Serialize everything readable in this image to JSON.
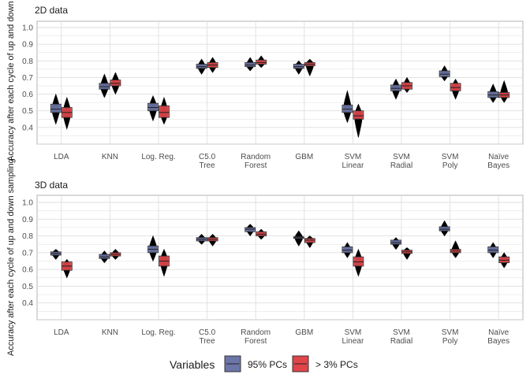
{
  "chart_data": [
    {
      "type": "violin-box",
      "title": "2D data",
      "ylabel": "Accuracy after each cycle of up and down sampling",
      "ylim": [
        0.3,
        1.0
      ],
      "yticks": [
        "0.4",
        "0.5",
        "0.6",
        "0.7",
        "0.8",
        "0.9",
        "1.0"
      ],
      "categories": [
        [
          "LDA"
        ],
        [
          "KNN"
        ],
        [
          "Log. Reg."
        ],
        [
          "C5.0",
          "Tree"
        ],
        [
          "Random",
          "Forest"
        ],
        [
          "GBM"
        ],
        [
          "SVM",
          "Linear"
        ],
        [
          "SVM",
          "Radial"
        ],
        [
          "SVM",
          "Poly"
        ],
        [
          "Naïve",
          "Bayes"
        ]
      ],
      "series": [
        {
          "name": "95% PCs",
          "q1": [
            0.49,
            0.63,
            0.5,
            0.755,
            0.765,
            0.755,
            0.49,
            0.62,
            0.705,
            0.58
          ],
          "median": [
            0.51,
            0.645,
            0.52,
            0.765,
            0.775,
            0.765,
            0.51,
            0.635,
            0.72,
            0.595
          ],
          "q3": [
            0.54,
            0.665,
            0.545,
            0.78,
            0.79,
            0.78,
            0.535,
            0.655,
            0.74,
            0.615
          ],
          "min": [
            0.42,
            0.58,
            0.44,
            0.72,
            0.74,
            0.72,
            0.43,
            0.57,
            0.68,
            0.55
          ],
          "max": [
            0.6,
            0.72,
            0.59,
            0.81,
            0.82,
            0.8,
            0.62,
            0.69,
            0.77,
            0.66
          ]
        },
        {
          "name": "> 3% PCs",
          "q1": [
            0.46,
            0.65,
            0.46,
            0.76,
            0.78,
            0.77,
            0.45,
            0.63,
            0.62,
            0.58
          ],
          "median": [
            0.49,
            0.665,
            0.49,
            0.775,
            0.79,
            0.78,
            0.47,
            0.65,
            0.64,
            0.595
          ],
          "q3": [
            0.52,
            0.685,
            0.53,
            0.79,
            0.805,
            0.79,
            0.5,
            0.67,
            0.665,
            0.61
          ],
          "min": [
            0.39,
            0.6,
            0.42,
            0.73,
            0.76,
            0.71,
            0.34,
            0.61,
            0.57,
            0.55
          ],
          "max": [
            0.58,
            0.73,
            0.58,
            0.82,
            0.83,
            0.81,
            0.54,
            0.7,
            0.69,
            0.68
          ]
        }
      ]
    },
    {
      "type": "violin-box",
      "title": "3D data",
      "ylabel": "Accuracy after each cycle of up and down sampling",
      "ylim": [
        0.3,
        1.0
      ],
      "yticks": [
        "0.4",
        "0.5",
        "0.6",
        "0.7",
        "0.8",
        "0.9",
        "1.0"
      ],
      "categories": [
        [
          "LDA"
        ],
        [
          "KNN"
        ],
        [
          "Log. Reg."
        ],
        [
          "C5.0",
          "Tree"
        ],
        [
          "Random",
          "Forest"
        ],
        [
          "GBM"
        ],
        [
          "SVM",
          "Linear"
        ],
        [
          "SVM",
          "Radial"
        ],
        [
          "SVM",
          "Poly"
        ],
        [
          "Naïve",
          "Bayes"
        ]
      ],
      "series": [
        {
          "name": "95% PCs",
          "q1": [
            0.685,
            0.665,
            0.7,
            0.77,
            0.825,
            0.785,
            0.7,
            0.75,
            0.83,
            0.7
          ],
          "median": [
            0.695,
            0.675,
            0.72,
            0.78,
            0.84,
            0.79,
            0.715,
            0.76,
            0.84,
            0.715
          ],
          "q3": [
            0.705,
            0.69,
            0.74,
            0.79,
            0.85,
            0.795,
            0.735,
            0.775,
            0.855,
            0.735
          ],
          "min": [
            0.66,
            0.64,
            0.65,
            0.75,
            0.8,
            0.74,
            0.67,
            0.72,
            0.8,
            0.67
          ],
          "max": [
            0.72,
            0.71,
            0.8,
            0.81,
            0.87,
            0.83,
            0.76,
            0.79,
            0.89,
            0.76
          ]
        },
        {
          "name": "> 3% PCs",
          "q1": [
            0.595,
            0.68,
            0.62,
            0.77,
            0.8,
            0.76,
            0.62,
            0.695,
            0.7,
            0.64
          ],
          "median": [
            0.62,
            0.69,
            0.65,
            0.78,
            0.81,
            0.775,
            0.645,
            0.705,
            0.71,
            0.655
          ],
          "q3": [
            0.645,
            0.7,
            0.68,
            0.79,
            0.825,
            0.785,
            0.675,
            0.715,
            0.72,
            0.675
          ],
          "min": [
            0.55,
            0.66,
            0.56,
            0.74,
            0.78,
            0.73,
            0.56,
            0.66,
            0.67,
            0.61
          ],
          "max": [
            0.66,
            0.72,
            0.72,
            0.81,
            0.84,
            0.8,
            0.72,
            0.73,
            0.77,
            0.7
          ]
        }
      ]
    }
  ],
  "legend": {
    "title": "Variables",
    "items": [
      {
        "label": "95% PCs",
        "color": "#6B75A8"
      },
      {
        "label": "> 3% PCs",
        "color": "#E0454A"
      }
    ]
  },
  "colors": {
    "series_a": "#6B75A8",
    "series_b": "#E0454A",
    "grid": "#DEDEDE",
    "violin": "#000000"
  }
}
